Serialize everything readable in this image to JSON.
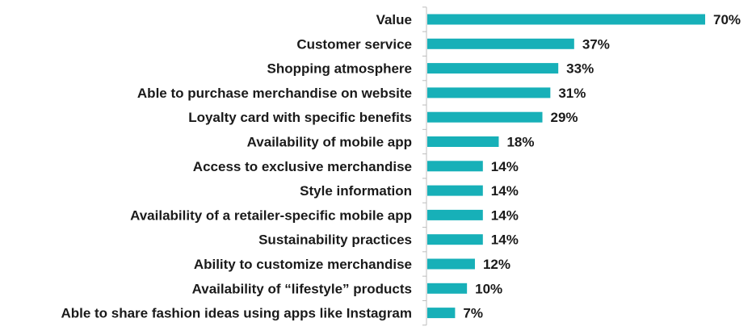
{
  "chart_data": {
    "type": "bar",
    "orientation": "horizontal",
    "categories": [
      "Value",
      "Customer service",
      "Shopping atmosphere",
      "Able to purchase merchandise on website",
      "Loyalty card with specific benefits",
      "Availability of mobile app",
      "Access to exclusive merchandise",
      "Style information",
      "Availability of a retailer-specific mobile app",
      "Sustainability practices",
      "Ability to customize merchandise",
      "Availability of “lifestyle” products",
      "Able to share fashion ideas using apps like Instagram"
    ],
    "values": [
      70,
      37,
      33,
      31,
      29,
      18,
      14,
      14,
      14,
      14,
      12,
      10,
      7
    ],
    "value_labels": [
      "70%",
      "37%",
      "33%",
      "31%",
      "29%",
      "18%",
      "14%",
      "14%",
      "14%",
      "14%",
      "12%",
      "10%",
      "7%"
    ],
    "title": "",
    "xlabel": "",
    "ylabel": "",
    "xlim": [
      0,
      70
    ],
    "grid": false,
    "legend": "none",
    "bar_color": "#17b0b8",
    "axis_color": "#bdbdbd",
    "text_color": "#1a1a1a"
  }
}
